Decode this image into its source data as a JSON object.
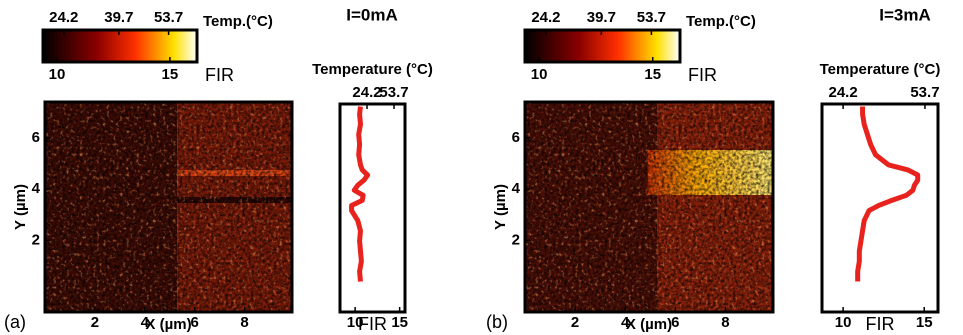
{
  "chart_data": [
    {
      "type": "profile",
      "panel_label": "(a)",
      "title": "I=0mA",
      "colorbar": {
        "top_label": "Temp.(°C)",
        "bottom_label": "FIR",
        "top_lim": [
          18.35,
          61.7
        ],
        "top_ticks": [
          24.2,
          39.7,
          53.7
        ],
        "bottom_lim": [
          9.38,
          16.2
        ],
        "bottom_ticks": [
          10,
          15
        ]
      },
      "heatmap": {
        "xlabel": "X (µm)",
        "ylabel": "Y (µm)",
        "xlim": [
          0,
          9.9
        ],
        "ylim": [
          -0.8,
          7.4
        ],
        "xticks": [
          2,
          4,
          6,
          8
        ],
        "yticks": [
          2,
          4,
          6
        ]
      },
      "profile": {
        "top_label": "Temperature (°C)",
        "xlabel": "FIR",
        "x2lim": [
          -5.3,
          65.7
        ],
        "x2ticks": [
          24.2,
          53.7
        ],
        "xlim": [
          8.3,
          15.6
        ],
        "xticks": [
          10,
          15
        ],
        "ylim": [
          -0.8,
          7.4
        ],
        "color": "#e8231e",
        "y": [
          0.4,
          0.8,
          1.2,
          1.6,
          2.0,
          2.4,
          2.8,
          3.2,
          3.4,
          3.6,
          3.8,
          4.0,
          4.2,
          4.4,
          4.6,
          4.8,
          5.0,
          5.4,
          5.8,
          6.2,
          6.6,
          7.0,
          7.3
        ],
        "values": [
          10.6,
          10.5,
          10.7,
          10.6,
          10.5,
          10.6,
          10.3,
          9.6,
          9.6,
          10.8,
          10.9,
          9.9,
          10.3,
          11.0,
          11.4,
          10.8,
          10.6,
          10.4,
          10.5,
          10.4,
          10.6,
          10.5,
          10.6
        ]
      }
    },
    {
      "type": "profile",
      "panel_label": "(b)",
      "title": "I=3mA",
      "colorbar": {
        "top_label": "Temp.(°C)",
        "bottom_label": "FIR",
        "top_lim": [
          18.35,
          61.7
        ],
        "top_ticks": [
          24.2,
          39.7,
          53.7
        ],
        "bottom_lim": [
          9.38,
          16.2
        ],
        "bottom_ticks": [
          10,
          15
        ]
      },
      "heatmap": {
        "xlabel": "X (µm)",
        "ylabel": "Y (µm)",
        "xlim": [
          0,
          9.9
        ],
        "ylim": [
          -0.8,
          7.4
        ],
        "xticks": [
          2,
          4,
          6,
          8
        ],
        "yticks": [
          2,
          4,
          6
        ]
      },
      "profile": {
        "top_label": "Temperature (°C)",
        "xlabel": "FIR",
        "x2lim": [
          16.6,
          58.4
        ],
        "x2ticks": [
          24.2,
          53.7
        ],
        "xlim": [
          8.7,
          15.85
        ],
        "xticks": [
          10,
          15
        ],
        "ylim": [
          -0.8,
          7.4
        ],
        "color": "#e8231e",
        "y": [
          0.4,
          0.8,
          1.2,
          1.6,
          2.0,
          2.4,
          2.8,
          3.2,
          3.4,
          3.6,
          3.8,
          4.0,
          4.2,
          4.4,
          4.6,
          4.8,
          5.0,
          5.4,
          5.8,
          6.2,
          6.6,
          7.0,
          7.3
        ],
        "values": [
          10.9,
          10.9,
          11.0,
          11.0,
          11.1,
          11.2,
          11.3,
          11.6,
          12.2,
          13.0,
          13.9,
          14.3,
          14.4,
          14.6,
          14.6,
          14.0,
          12.8,
          12.0,
          11.7,
          11.5,
          11.3,
          11.2,
          11.2
        ]
      }
    }
  ]
}
